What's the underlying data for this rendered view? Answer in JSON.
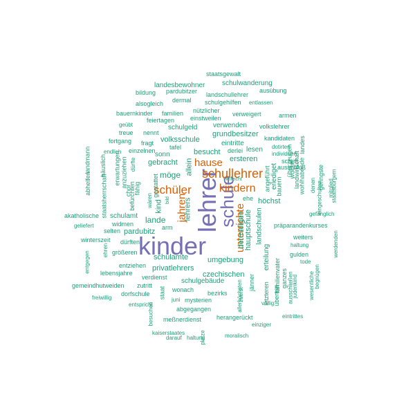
{
  "colors": {
    "teal": "#1b9e77",
    "orange": "#d95f02",
    "purple": "#7570b3"
  },
  "words": [
    {
      "text": "kinder",
      "color": "purple"
    },
    {
      "text": "lehrer",
      "color": "purple"
    },
    {
      "text": "schule",
      "color": "purple"
    },
    {
      "text": "schullehrer",
      "color": "orange"
    },
    {
      "text": "schüler",
      "color": "orange"
    },
    {
      "text": "kindern",
      "color": "orange"
    },
    {
      "text": "hause",
      "color": "orange"
    },
    {
      "text": "jahren",
      "color": "orange"
    },
    {
      "text": "unterrichte",
      "color": "orange"
    },
    {
      "text": "staatsgewalt",
      "color": "teal"
    },
    {
      "text": "landesbewohner",
      "color": "teal"
    },
    {
      "text": "schulwanderung",
      "color": "teal"
    },
    {
      "text": "bildung",
      "color": "teal"
    },
    {
      "text": "pardubitzer",
      "color": "teal"
    },
    {
      "text": "landschullehrer",
      "color": "teal"
    },
    {
      "text": "ausübung",
      "color": "teal"
    },
    {
      "text": "alsogleich",
      "color": "teal"
    },
    {
      "text": "dermal",
      "color": "teal"
    },
    {
      "text": "schulgehilfen",
      "color": "teal"
    },
    {
      "text": "entlassen",
      "color": "teal"
    },
    {
      "text": "bauernkinder",
      "color": "teal"
    },
    {
      "text": "familien",
      "color": "teal"
    },
    {
      "text": "nützlicher",
      "color": "teal"
    },
    {
      "text": "verweigert",
      "color": "teal"
    },
    {
      "text": "armen",
      "color": "teal"
    },
    {
      "text": "feiertagen",
      "color": "teal"
    },
    {
      "text": "einstweilen",
      "color": "teal"
    },
    {
      "text": "geübt",
      "color": "teal"
    },
    {
      "text": "verwenden",
      "color": "teal"
    },
    {
      "text": "volkslehrer",
      "color": "teal"
    },
    {
      "text": "treue",
      "color": "teal"
    },
    {
      "text": "nennt",
      "color": "teal"
    },
    {
      "text": "schulgeld",
      "color": "teal"
    },
    {
      "text": "grundbesitzer",
      "color": "teal"
    },
    {
      "text": "fortgang",
      "color": "teal"
    },
    {
      "text": "fragt",
      "color": "teal"
    },
    {
      "text": "volksschule",
      "color": "teal"
    },
    {
      "text": "eintritte",
      "color": "teal"
    },
    {
      "text": "kandidaten",
      "color": "teal"
    },
    {
      "text": "endlich",
      "color": "teal"
    },
    {
      "text": "einzelnen",
      "color": "teal"
    },
    {
      "text": "tafel",
      "color": "teal"
    },
    {
      "text": "derlei",
      "color": "teal"
    },
    {
      "text": "lesen",
      "color": "teal"
    },
    {
      "text": "dotirten",
      "color": "teal"
    },
    {
      "text": "sonn",
      "color": "teal"
    },
    {
      "text": "besucht",
      "color": "teal"
    },
    {
      "text": "individuen",
      "color": "teal"
    },
    {
      "text": "gebracht",
      "color": "teal"
    },
    {
      "text": "ersteren",
      "color": "teal"
    },
    {
      "text": "schrift",
      "color": "teal"
    },
    {
      "text": "vielleicht",
      "color": "teal"
    },
    {
      "text": "ausschluß",
      "color": "teal"
    },
    {
      "text": "möge",
      "color": "teal"
    },
    {
      "text": "höchst",
      "color": "teal"
    },
    {
      "text": "ehe",
      "color": "teal"
    },
    {
      "text": "lande",
      "color": "teal"
    },
    {
      "text": "schulamt",
      "color": "teal"
    },
    {
      "text": "akatholische",
      "color": "teal"
    },
    {
      "text": "geliefert",
      "color": "teal"
    },
    {
      "text": "widmen",
      "color": "teal"
    },
    {
      "text": "pardubitz",
      "color": "teal"
    },
    {
      "text": "selten",
      "color": "teal"
    },
    {
      "text": "arm",
      "color": "teal"
    },
    {
      "text": "präparandenkurses",
      "color": "teal"
    },
    {
      "text": "winterszeit",
      "color": "teal"
    },
    {
      "text": "dürften",
      "color": "teal"
    },
    {
      "text": "weiters",
      "color": "teal"
    },
    {
      "text": "haltung",
      "color": "teal"
    },
    {
      "text": "größeren",
      "color": "teal"
    },
    {
      "text": "schulamte",
      "color": "teal"
    },
    {
      "text": "gulden",
      "color": "teal"
    },
    {
      "text": "privatlehrers",
      "color": "teal"
    },
    {
      "text": "umgebung",
      "color": "teal"
    },
    {
      "text": "entziehen",
      "color": "teal"
    },
    {
      "text": "lebensjahre",
      "color": "teal"
    },
    {
      "text": "tode",
      "color": "teal"
    },
    {
      "text": "verdienst",
      "color": "teal"
    },
    {
      "text": "czechischen",
      "color": "teal"
    },
    {
      "text": "gemeindhutweiden",
      "color": "teal"
    },
    {
      "text": "zutritt",
      "color": "teal"
    },
    {
      "text": "schulgebäude",
      "color": "teal"
    },
    {
      "text": "wonach",
      "color": "teal"
    },
    {
      "text": "dorfschule",
      "color": "teal"
    },
    {
      "text": "freiwillig",
      "color": "teal"
    },
    {
      "text": "bezirks",
      "color": "teal"
    },
    {
      "text": "juni",
      "color": "teal"
    },
    {
      "text": "mysterien",
      "color": "teal"
    },
    {
      "text": "entspricht",
      "color": "teal"
    },
    {
      "text": "abgegangen",
      "color": "teal"
    },
    {
      "text": "völlig",
      "color": "teal"
    },
    {
      "text": "meßnerdienst",
      "color": "teal"
    },
    {
      "text": "herangerückt",
      "color": "teal"
    },
    {
      "text": "eintrittes",
      "color": "teal"
    },
    {
      "text": "einziger",
      "color": "teal"
    },
    {
      "text": "kaiserstaates",
      "color": "teal"
    },
    {
      "text": "darauf",
      "color": "teal"
    },
    {
      "text": "haltung",
      "color": "teal"
    },
    {
      "text": "moralisch",
      "color": "teal"
    },
    {
      "text": "dermaligen",
      "color": "teal"
    },
    {
      "text": "hauptschule",
      "color": "teal"
    },
    {
      "text": "landschulen",
      "color": "teal"
    },
    {
      "text": "angeführt",
      "color": "teal"
    },
    {
      "text": "lehrers",
      "color": "teal"
    },
    {
      "text": "kind",
      "color": "teal"
    },
    {
      "text": "allein",
      "color": "teal"
    },
    {
      "text": "erlediget",
      "color": "teal"
    },
    {
      "text": "bauern",
      "color": "teal"
    },
    {
      "text": "überzeugen",
      "color": "teal"
    },
    {
      "text": "woche",
      "color": "teal"
    },
    {
      "text": "landwirtschaft",
      "color": "teal"
    },
    {
      "text": "wohlhabende",
      "color": "teal"
    },
    {
      "text": "landes",
      "color": "teal"
    },
    {
      "text": "eingeschulten",
      "color": "teal"
    },
    {
      "text": "geringste",
      "color": "teal"
    },
    {
      "text": "staatsbürgern",
      "color": "teal"
    },
    {
      "text": "denen",
      "color": "teal"
    },
    {
      "text": "gefänglich",
      "color": "teal"
    },
    {
      "text": "mitglied",
      "color": "teal"
    },
    {
      "text": "werdenden",
      "color": "teal"
    },
    {
      "text": "begnügen",
      "color": "teal"
    },
    {
      "text": "wesentliche",
      "color": "teal"
    },
    {
      "text": "judenkind",
      "color": "teal"
    },
    {
      "text": "ganzes",
      "color": "teal"
    },
    {
      "text": "ausschließen",
      "color": "teal"
    },
    {
      "text": "familienvater",
      "color": "teal"
    },
    {
      "text": "erteilung",
      "color": "teal"
    },
    {
      "text": "letzteren",
      "color": "teal"
    },
    {
      "text": "übertritt",
      "color": "teal"
    },
    {
      "text": "jänner",
      "color": "teal"
    },
    {
      "text": "zuerst",
      "color": "teal"
    },
    {
      "text": "allerhöchsten",
      "color": "teal"
    },
    {
      "text": "platze",
      "color": "teal"
    },
    {
      "text": "besuchen",
      "color": "teal"
    },
    {
      "text": "staat",
      "color": "teal"
    },
    {
      "text": "bild",
      "color": "teal"
    },
    {
      "text": "wären",
      "color": "teal"
    },
    {
      "text": "gestattet",
      "color": "teal"
    },
    {
      "text": "fähig",
      "color": "teal"
    },
    {
      "text": "dürfte",
      "color": "teal"
    },
    {
      "text": "chor",
      "color": "teal"
    },
    {
      "text": "befürchten",
      "color": "teal"
    },
    {
      "text": "anzuziehen",
      "color": "teal"
    },
    {
      "text": "erwartungen",
      "color": "teal"
    },
    {
      "text": "häuslich",
      "color": "teal"
    },
    {
      "text": "staatsherrschaft",
      "color": "teal"
    },
    {
      "text": "landmann",
      "color": "teal"
    },
    {
      "text": "abhelfen",
      "color": "teal"
    },
    {
      "text": "entgegen",
      "color": "teal"
    },
    {
      "text": "ehren",
      "color": "teal"
    }
  ]
}
